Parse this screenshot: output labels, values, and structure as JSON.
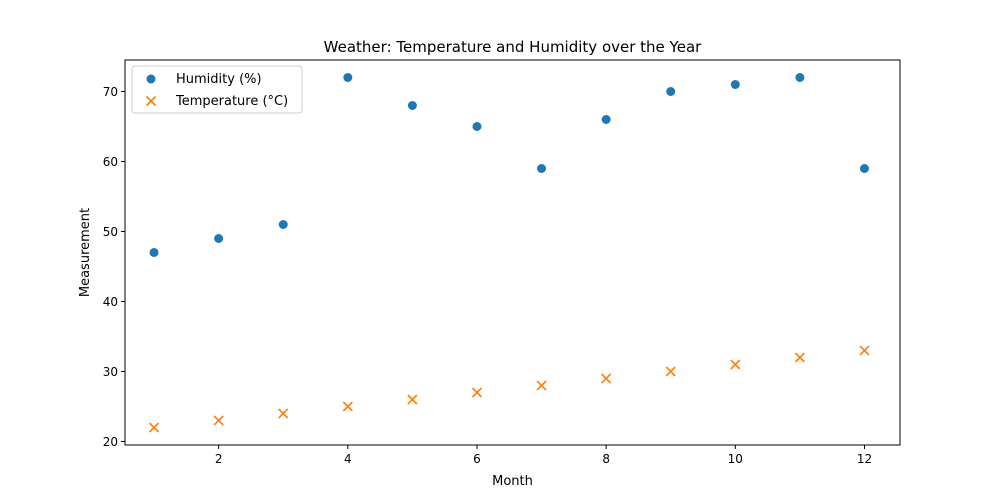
{
  "chart_data": {
    "type": "scatter",
    "title": "Weather: Temperature and Humidity over the Year",
    "xlabel": "Month",
    "ylabel": "Measurement",
    "xlim": [
      0.55,
      12.55
    ],
    "ylim": [
      19.5,
      74.5
    ],
    "xticks": [
      2,
      4,
      6,
      8,
      10,
      12
    ],
    "yticks": [
      20,
      30,
      40,
      50,
      60,
      70
    ],
    "grid": false,
    "legend_position": "top-left",
    "series": [
      {
        "name": "Humidity (%)",
        "marker": "circle",
        "color": "#1f77b4",
        "x": [
          1,
          2,
          3,
          4,
          5,
          6,
          7,
          8,
          9,
          10,
          11,
          12
        ],
        "y": [
          47,
          49,
          51,
          72,
          68,
          65,
          59,
          66,
          70,
          71,
          72,
          59
        ]
      },
      {
        "name": "Temperature (°C)",
        "marker": "x",
        "color": "#ff7f0e",
        "x": [
          1,
          2,
          3,
          4,
          5,
          6,
          7,
          8,
          9,
          10,
          11,
          12
        ],
        "y": [
          22,
          23,
          24,
          25,
          26,
          27,
          28,
          29,
          30,
          31,
          32,
          33
        ]
      }
    ]
  }
}
